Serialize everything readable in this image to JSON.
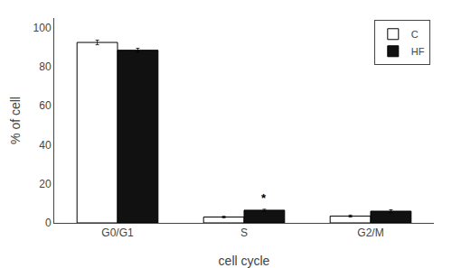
{
  "chart_data": {
    "type": "bar",
    "categories": [
      "G0/G1",
      "S",
      "G2/M"
    ],
    "series": [
      {
        "name": "C",
        "color": "#ffffff",
        "values": [
          92.5,
          3.0,
          3.5
        ],
        "errors": [
          1.2,
          0.4,
          0.5
        ]
      },
      {
        "name": "HF",
        "color": "#111111",
        "values": [
          88.5,
          6.5,
          6.0
        ],
        "errors": [
          1.0,
          0.5,
          0.7
        ]
      }
    ],
    "xlabel": "cell cycle",
    "ylabel": "% of cell",
    "ylim": [
      0,
      105
    ],
    "yticks": [
      0,
      20,
      40,
      60,
      80,
      100
    ],
    "grid": false,
    "legend": "upper right",
    "annotations": [
      {
        "text": "*",
        "category": "S",
        "series": "HF",
        "y": 8.5
      }
    ]
  }
}
